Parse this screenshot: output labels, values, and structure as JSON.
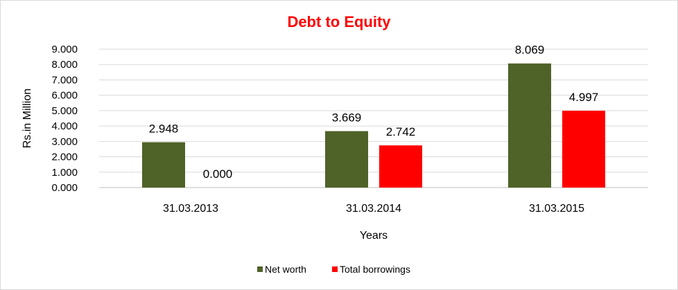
{
  "chart_data": {
    "type": "bar",
    "title": "Debt to Equity",
    "xlabel": "Years",
    "ylabel": "Rs.in Million",
    "categories": [
      "31.03.2013",
      "31.03.2014",
      "31.03.2015"
    ],
    "series": [
      {
        "name": "Net worth",
        "values": [
          2.948,
          3.669,
          8.069
        ],
        "color": "#4f6228"
      },
      {
        "name": "Total borrowings",
        "values": [
          0.0,
          2.742,
          4.997
        ],
        "color": "#ff0000"
      }
    ],
    "ylim": [
      0,
      9
    ],
    "yticks": [
      "0.000",
      "1.000",
      "2.000",
      "3.000",
      "4.000",
      "5.000",
      "6.000",
      "7.000",
      "8.000",
      "9.000"
    ],
    "data_labels": [
      [
        "2.948",
        "3.669",
        "8.069"
      ],
      [
        "0.000",
        "2.742",
        "4.997"
      ]
    ],
    "grid": true,
    "legend_position": "bottom",
    "title_color": "#ff0000"
  }
}
